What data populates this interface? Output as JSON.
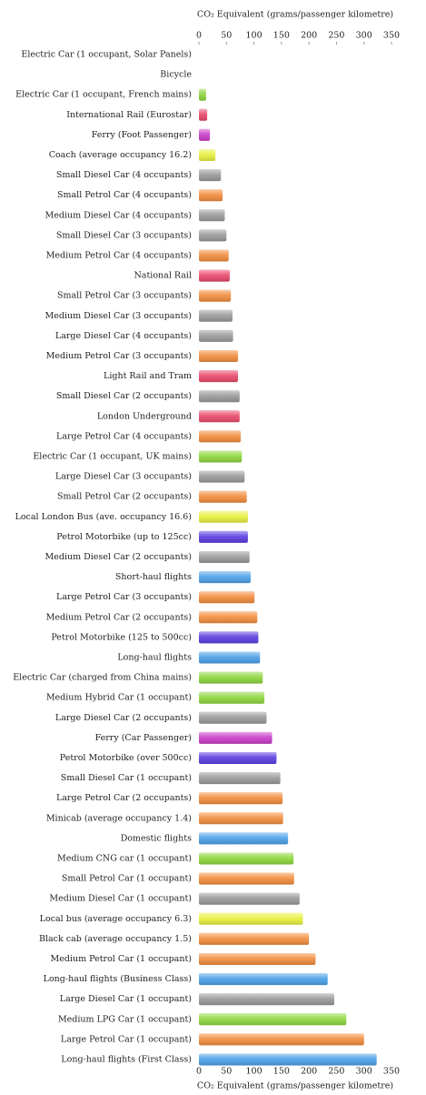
{
  "chart_data": {
    "type": "bar",
    "orientation": "horizontal",
    "xlabel": "CO₂ Equivalent (grams/passenger kilometre)",
    "categories": [
      "Electric Car (1 occupant, Solar Panels)",
      "Bicycle",
      "Electric Car (1 occupant, French mains)",
      "International Rail (Eurostar)",
      "Ferry (Foot Passenger)",
      "Coach (average occupancy 16.2)",
      "Small Diesel Car (4 occupants)",
      "Small Petrol Car (4 occupants)",
      "Medium Diesel Car (4 occupants)",
      "Small Diesel Car (3 occupants)",
      "Medium Petrol Car (4 occupants)",
      "National Rail",
      "Small Petrol Car (3 occupants)",
      "Medium Diesel Car (3 occupants)",
      "Large Diesel Car (4 occupants)",
      "Medium Petrol Car (3 occupants)",
      "Light Rail and Tram",
      "Small Diesel Car (2 occupants)",
      "London Underground",
      "Large Petrol Car (4 occupants)",
      "Electric Car (1 occupant, UK mains)",
      "Large Diesel Car (3 occupants)",
      "Small Petrol Car (2 occupants)",
      "Local London Bus (ave. occupancy 16.6)",
      "Petrol Motorbike (up to 125cc)",
      "Medium Diesel Car (2 occupants)",
      "Short-haul flights",
      "Large Petrol Car (3 occupants)",
      "Medium Petrol Car (2 occupants)",
      "Petrol Motorbike (125 to 500cc)",
      "Long-haul flights",
      "Electric Car (charged from China mains)",
      "Medium Hybrid Car (1 occupant)",
      "Large Diesel Car (2 occupants)",
      "Ferry (Car Passenger)",
      "Petrol Motorbike (over 500cc)",
      "Small Diesel Car (1 occupant)",
      "Large Petrol Car (2 occupants)",
      "Minicab (average occupancy 1.4)",
      "Domestic flights",
      "Medium CNG car (1 occupant)",
      "Small Petrol Car (1 occupant)",
      "Medium Diesel Car (1 occupant)",
      "Local bus (average occupancy 6.3)",
      "Black cab (average occupancy 1.5)",
      "Medium Petrol Car (1 occupant)",
      "Long-haul flights (Business Class)",
      "Large Diesel Car (1 occupant)",
      "Medium LPG Car (1 occupant)",
      "Large Petrol Car (1 occupant)",
      "Long-haul flights (First Class)"
    ],
    "values": [
      0,
      0,
      13,
      15,
      20,
      30,
      40,
      43,
      47,
      50,
      54,
      56,
      58,
      61,
      62,
      71,
      71,
      74,
      74,
      76,
      78,
      83,
      87,
      89,
      89,
      92,
      94,
      101,
      106,
      108,
      111,
      116,
      119,
      123,
      133,
      141,
      148,
      152,
      153,
      162,
      172,
      173,
      183,
      189,
      200,
      212,
      234,
      246,
      268,
      300,
      323
    ],
    "colors": [
      "#8dd63c",
      "#8dd63c",
      "#8dd63c",
      "#e8486a",
      "#c83cc8",
      "#e8f03c",
      "#999999",
      "#f28c3c",
      "#999999",
      "#999999",
      "#f28c3c",
      "#e8486a",
      "#f28c3c",
      "#999999",
      "#999999",
      "#f28c3c",
      "#e8486a",
      "#999999",
      "#e8486a",
      "#f28c3c",
      "#8dd63c",
      "#999999",
      "#f28c3c",
      "#e8f03c",
      "#5a3ce0",
      "#999999",
      "#4aa0e8",
      "#f28c3c",
      "#f28c3c",
      "#5a3ce0",
      "#4aa0e8",
      "#8dd63c",
      "#8dd63c",
      "#999999",
      "#c83cc8",
      "#5a3ce0",
      "#999999",
      "#f28c3c",
      "#f28c3c",
      "#4aa0e8",
      "#8dd63c",
      "#f28c3c",
      "#999999",
      "#e8f03c",
      "#f28c3c",
      "#f28c3c",
      "#4aa0e8",
      "#999999",
      "#8dd63c",
      "#f28c3c",
      "#4aa0e8"
    ],
    "xlim": [
      0,
      350
    ],
    "xticks": [
      0,
      50,
      100,
      150,
      200,
      250,
      300,
      350
    ]
  }
}
